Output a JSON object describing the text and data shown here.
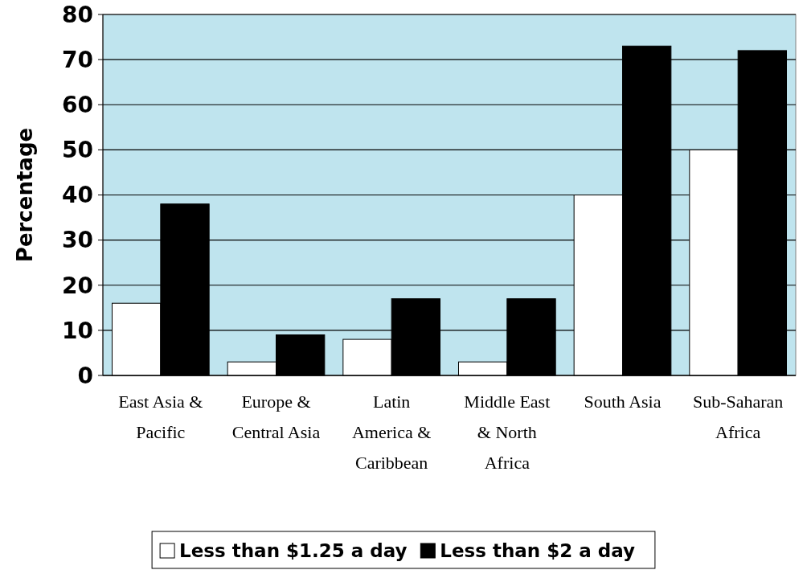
{
  "chart_data": {
    "type": "bar",
    "ylabel": "Percentage",
    "categories": [
      "East Asia & Pacific",
      "Europe & Central Asia",
      "Latin America & Caribbean",
      "Middle East & North Africa",
      "South Asia",
      "Sub-Saharan Africa"
    ],
    "series": [
      {
        "name": "Less than $1.25 a day",
        "color": "#ffffff",
        "values": [
          16,
          3,
          8,
          3,
          40,
          50
        ]
      },
      {
        "name": "Less than $2 a day",
        "color": "#000000",
        "values": [
          38,
          9,
          17,
          17,
          73,
          72
        ]
      }
    ],
    "ylim": [
      0,
      80
    ],
    "yticks": [
      0,
      10,
      20,
      30,
      40,
      50,
      60,
      70,
      80
    ],
    "grid": "y",
    "legend": "bottom"
  }
}
